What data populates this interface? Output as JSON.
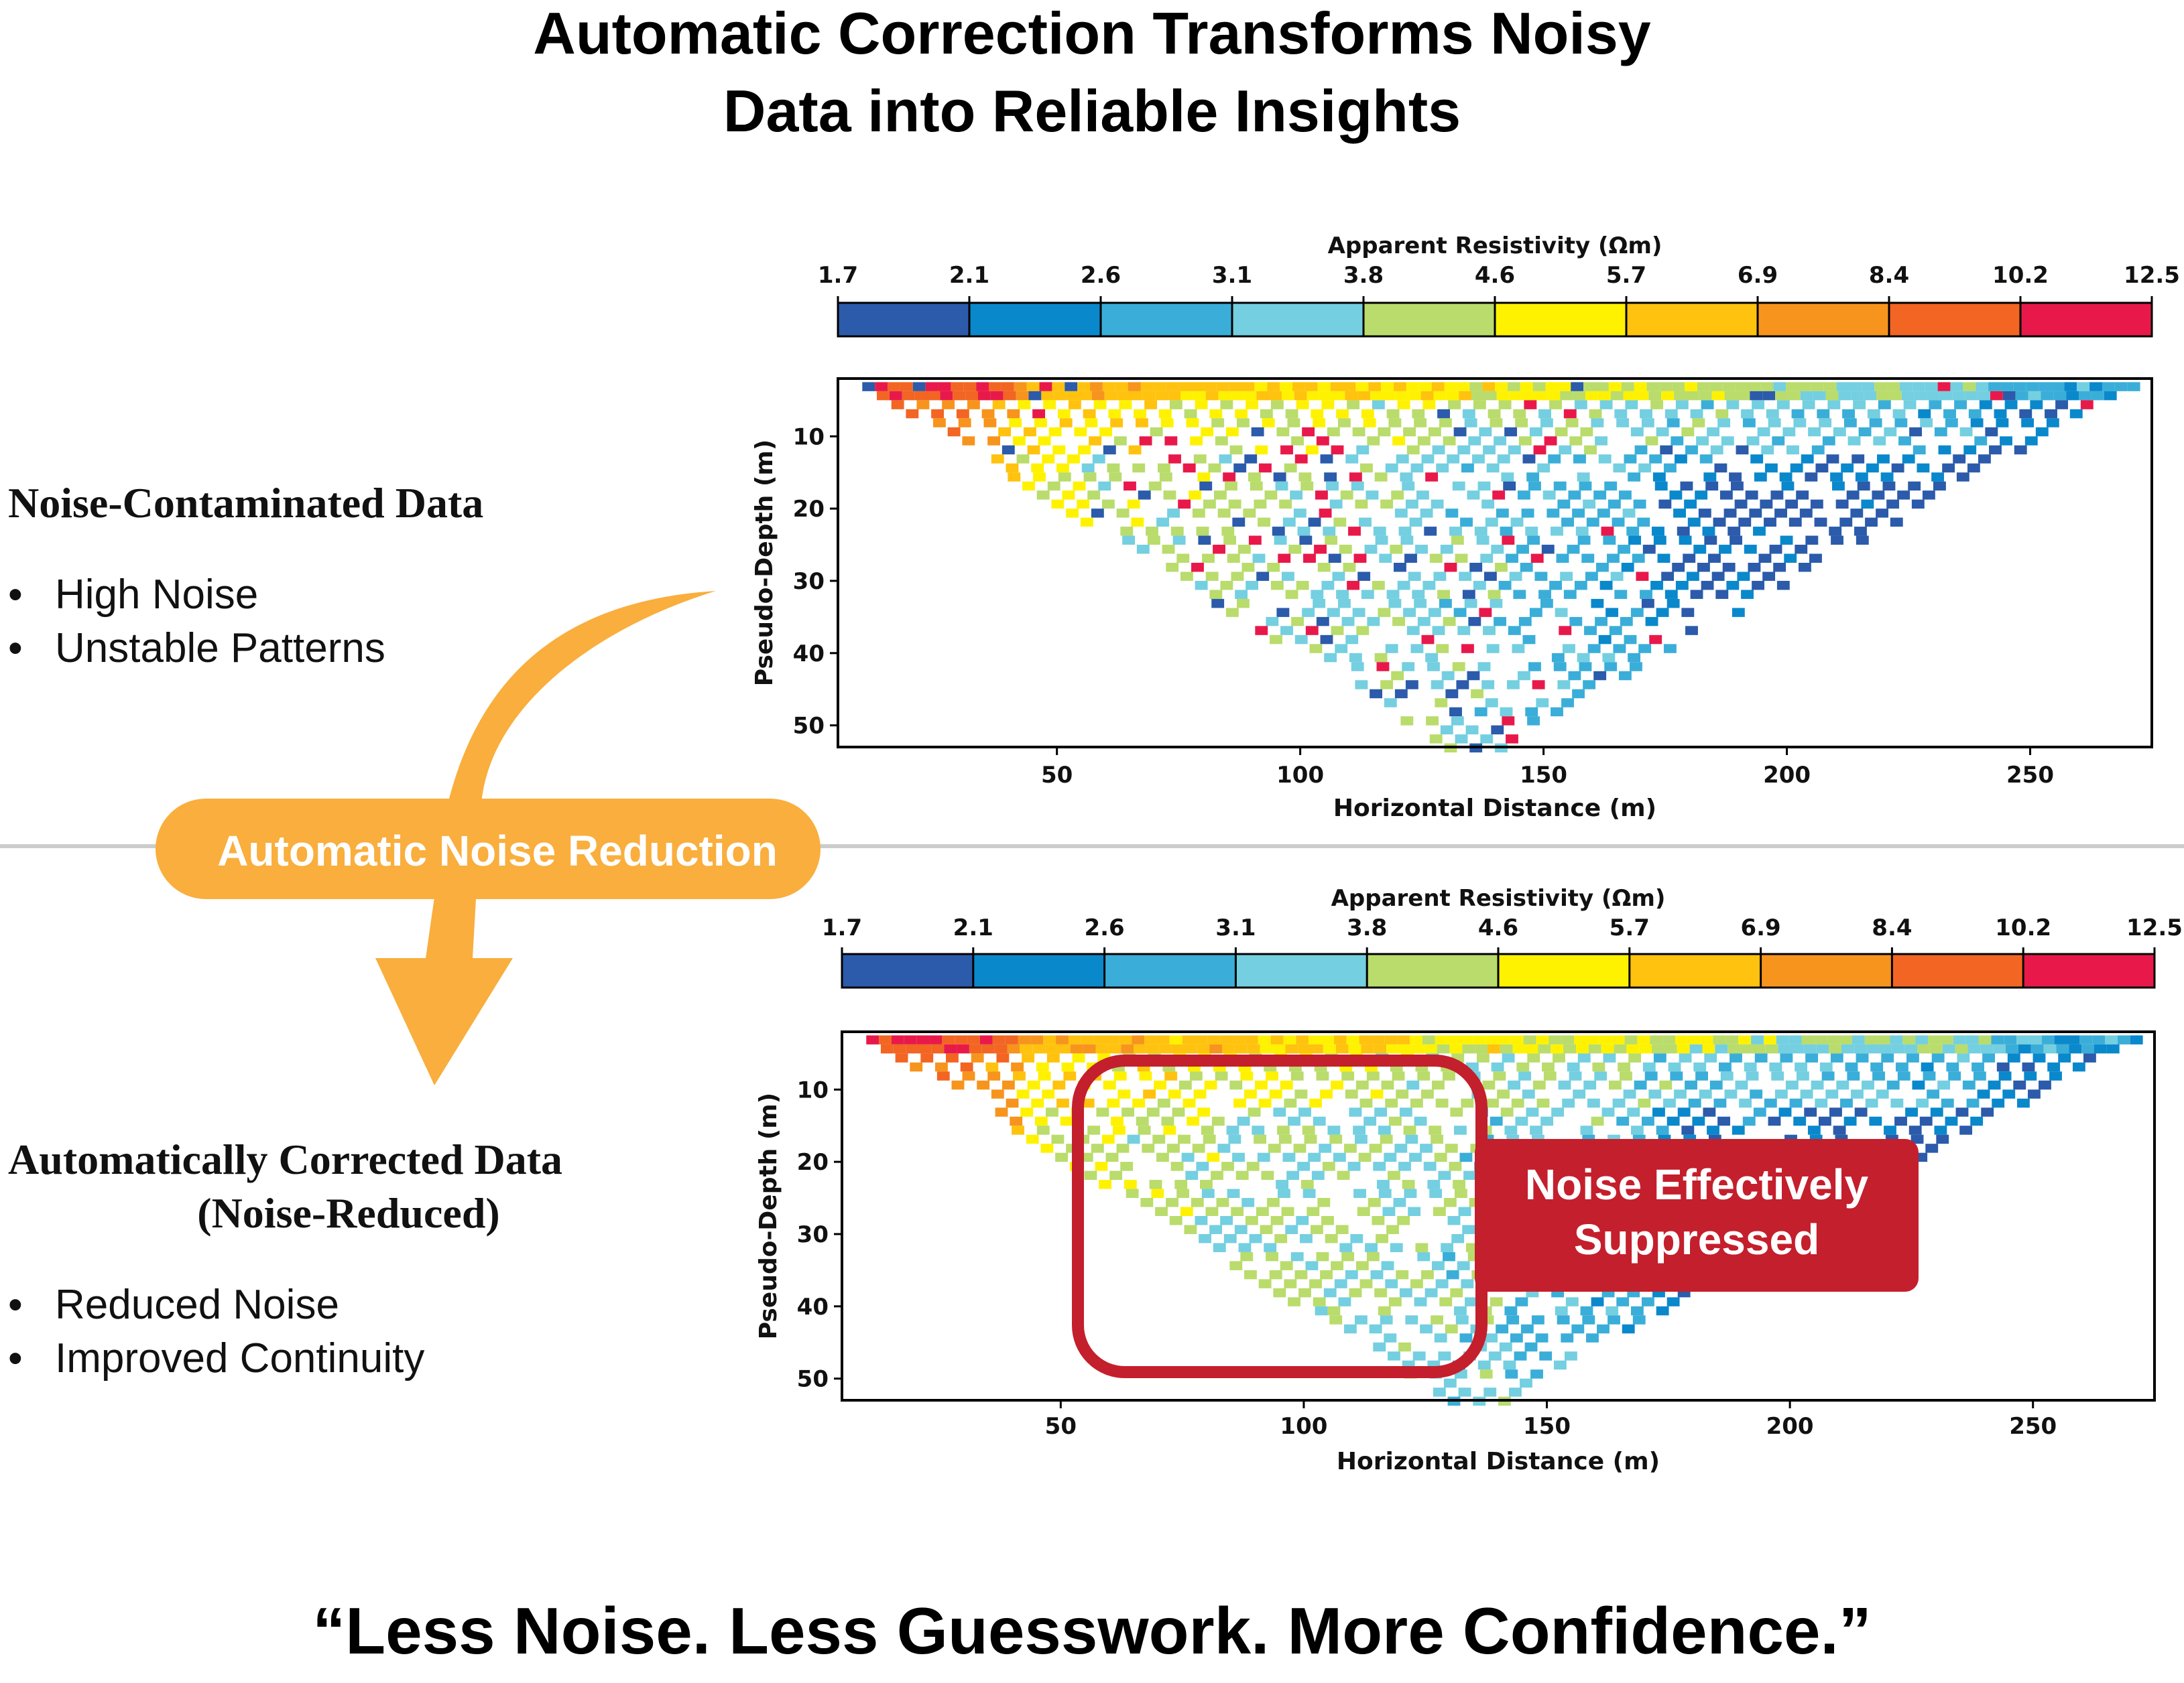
{
  "title": {
    "line1": "Automatic Correction Transforms Noisy",
    "line2": "Data into Reliable Insights"
  },
  "left_top": {
    "heading": "Noise-Contaminated Data",
    "bullets": [
      "High Noise",
      "Unstable Patterns"
    ]
  },
  "left_bottom": {
    "heading_line1": "Automatically Corrected Data",
    "heading_line2": "(Noise-Reduced)",
    "bullets": [
      "Reduced Noise",
      "Improved Continuity"
    ]
  },
  "arrow_label": "Automatic Noise Reduction",
  "callout": {
    "line1": "Noise Effectively",
    "line2": "Suppressed"
  },
  "quote": "“Less Noise. Less Guesswork. More Confidence.”",
  "bullet_glyph": "•",
  "colors": {
    "arrow": "#F9AE3D",
    "callout": "#C41F2C",
    "separator": "#CCCCCC",
    "colorbar": [
      "#2B5BAA",
      "#0A88CC",
      "#3AAED8",
      "#74CFE0",
      "#B9DC6C",
      "#FFF200",
      "#FFC20E",
      "#F7941D",
      "#F26522",
      "#E8194A"
    ]
  },
  "chart_data": [
    {
      "type": "heatmap",
      "name": "noise-contaminated pseudosection",
      "xlabel": "Horizontal Distance (m)",
      "ylabel": "Pseudo-Depth (m)",
      "colorbar_label": "Apparent Resistivity (Ωm)",
      "colorbar_ticks": [
        "1.7",
        "2.1",
        "2.6",
        "3.1",
        "3.8",
        "4.6",
        "5.7",
        "6.9",
        "8.4",
        "10.2",
        "12.5"
      ],
      "x_ticks": [
        50,
        100,
        150,
        200,
        250
      ],
      "y_ticks": [
        10,
        20,
        30,
        40,
        50
      ],
      "xlim": [
        5,
        275
      ],
      "ylim": [
        53,
        2
      ],
      "data_extent": {
        "x_min": 10,
        "x_max": 270,
        "apex_x": 140,
        "depth_min": 2.5,
        "depth_max": 52.5
      },
      "noise_level": "high"
    },
    {
      "type": "heatmap",
      "name": "automatically corrected pseudosection",
      "xlabel": "Horizontal Distance (m)",
      "ylabel": "Pseudo-Depth (m)",
      "colorbar_label": "Apparent Resistivity (Ωm)",
      "colorbar_ticks": [
        "1.7",
        "2.1",
        "2.6",
        "3.1",
        "3.8",
        "4.6",
        "5.7",
        "6.9",
        "8.4",
        "10.2",
        "12.5"
      ],
      "x_ticks": [
        50,
        100,
        150,
        200,
        250
      ],
      "y_ticks": [
        10,
        20,
        30,
        40,
        50
      ],
      "xlim": [
        5,
        275
      ],
      "ylim": [
        53,
        2
      ],
      "data_extent": {
        "x_min": 10,
        "x_max": 270,
        "apex_x": 140,
        "depth_min": 2.5,
        "depth_max": 52.5
      },
      "noise_level": "low"
    }
  ]
}
